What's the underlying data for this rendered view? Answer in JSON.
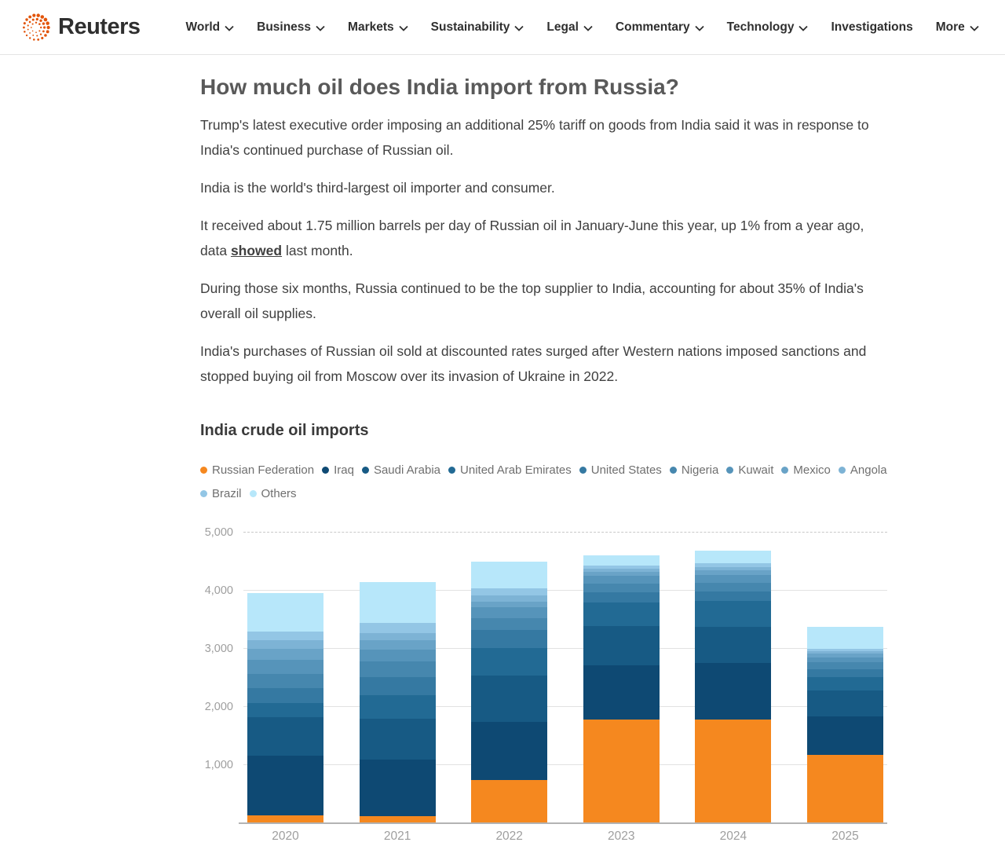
{
  "header": {
    "brand": "Reuters",
    "nav": [
      {
        "label": "World",
        "icon": "chevron-down"
      },
      {
        "label": "Business",
        "icon": "chevron-down"
      },
      {
        "label": "Markets",
        "icon": "chevron-down"
      },
      {
        "label": "Sustainability",
        "icon": "chevron-down"
      },
      {
        "label": "Legal",
        "icon": "chevron-down"
      },
      {
        "label": "Commentary",
        "icon": "chevron-down"
      },
      {
        "label": "Technology",
        "icon": "chevron-down"
      },
      {
        "label": "Investigations",
        "icon": null
      },
      {
        "label": "More",
        "icon": "chevron-down"
      }
    ]
  },
  "article": {
    "headline": "How much oil does India import from Russia?",
    "p1": "Trump's latest executive order imposing an additional 25% tariff on goods from India said it was in response to India's continued purchase of Russian oil.",
    "p2": "India is the world's third-largest oil importer and consumer.",
    "p3_before": "It received about 1.75 million barrels per day of Russian oil in January-June this year, up 1% from a year ago, data ",
    "p3_link": "showed",
    "p3_after": " last month.",
    "p4": "During those six months, Russia continued to be the top supplier to India, accounting for about 35% of India's overall oil supplies.",
    "p5": "India's purchases of Russian oil sold at discounted rates surged after Western nations imposed sanctions and stopped buying oil from Moscow over its invasion of Ukraine in 2022."
  },
  "colors": {
    "brand_dot_orange": "#E2540A",
    "accent_orange": "#F5881F",
    "grid": "#E2E2E2",
    "axis_text": "#9E9E9E",
    "legend_text": "#6F6F6F",
    "body_text": "#404040",
    "headline_text": "#595959",
    "baseline": "#B3B3B3"
  },
  "chart_data": {
    "type": "bar",
    "stacked": true,
    "title": "India crude oil imports",
    "xlabel": "",
    "ylabel": "",
    "ylim": [
      0,
      5000
    ],
    "grid": true,
    "legend_position": "top",
    "categories": [
      "2020",
      "2021",
      "2022",
      "2023",
      "2024",
      "2025"
    ],
    "y_ticks": [
      {
        "value": 1000,
        "label": "1,000"
      },
      {
        "value": 2000,
        "label": "2,000"
      },
      {
        "value": 3000,
        "label": "3,000"
      },
      {
        "value": 4000,
        "label": "4,000"
      },
      {
        "value": 5000,
        "label": "5,000"
      }
    ],
    "series": [
      {
        "name": "Russian Federation",
        "color": "#F5881F",
        "values": [
          140,
          120,
          740,
          1790,
          1780,
          1180
        ]
      },
      {
        "name": "Iraq",
        "color": "#0E4973",
        "values": [
          1020,
          970,
          1000,
          925,
          980,
          660
        ]
      },
      {
        "name": "Saudi Arabia",
        "color": "#175A84",
        "values": [
          660,
          710,
          800,
          670,
          625,
          440
        ]
      },
      {
        "name": "United Arab Emirates",
        "color": "#226A94",
        "values": [
          250,
          410,
          480,
          405,
          440,
          230
        ]
      },
      {
        "name": "United States",
        "color": "#3579A2",
        "values": [
          260,
          300,
          300,
          175,
          165,
          140
        ]
      },
      {
        "name": "Nigeria",
        "color": "#4687AE",
        "values": [
          240,
          275,
          210,
          150,
          150,
          115
        ]
      },
      {
        "name": "Kuwait",
        "color": "#5694BA",
        "values": [
          245,
          205,
          185,
          135,
          135,
          90
        ]
      },
      {
        "name": "Mexico",
        "color": "#69A3C7",
        "values": [
          180,
          160,
          95,
          70,
          75,
          60
        ]
      },
      {
        "name": "Angola",
        "color": "#7DB3D5",
        "values": [
          155,
          115,
          115,
          50,
          55,
          40
        ]
      },
      {
        "name": "Brazil",
        "color": "#93C6E5",
        "values": [
          150,
          185,
          115,
          60,
          65,
          40
        ]
      },
      {
        "name": "Others",
        "color": "#B7E7FA",
        "values": [
          660,
          700,
          460,
          180,
          220,
          380
        ]
      }
    ],
    "totals": [
      3960,
      4150,
      4500,
      4610,
      4690,
      3375
    ]
  }
}
